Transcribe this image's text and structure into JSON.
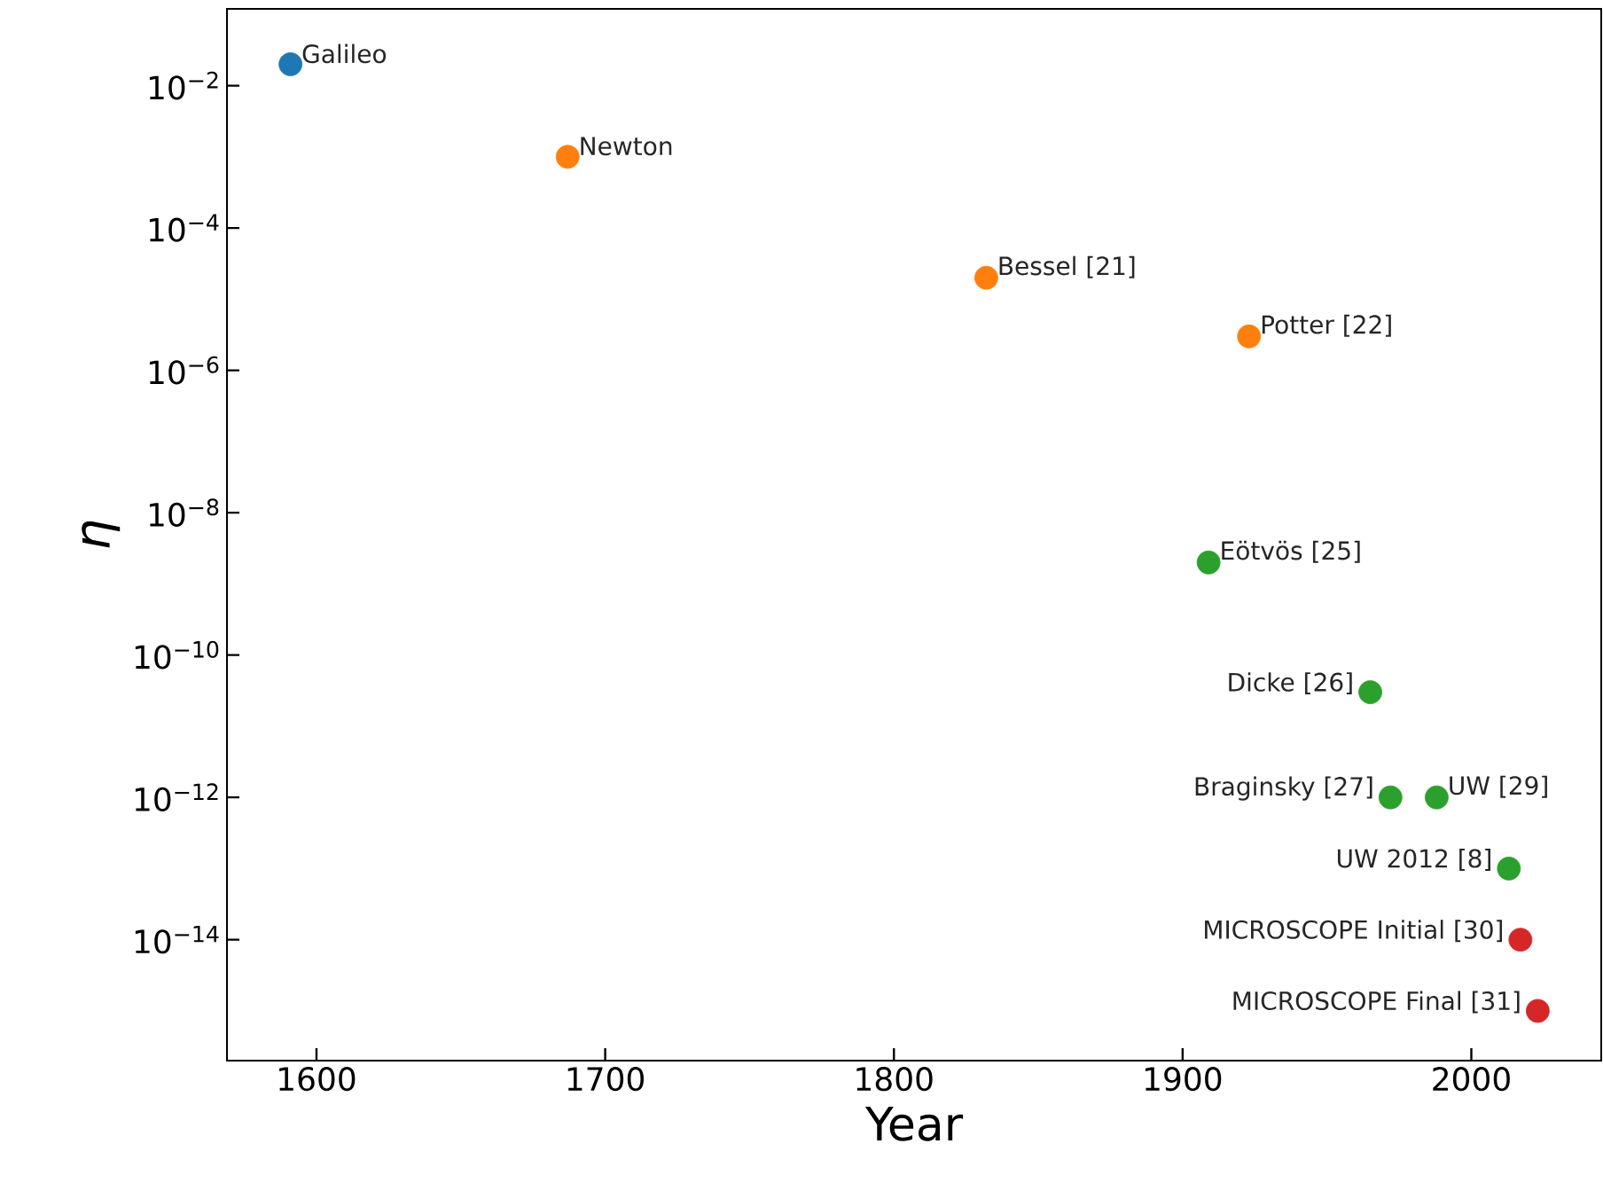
{
  "chart_data": {
    "type": "scatter",
    "xlabel": "Year",
    "ylabel": "η",
    "log": "y",
    "grid": false,
    "marker": "circle",
    "xlim": [
      1569,
      2045
    ],
    "xticks": [
      1600,
      1700,
      1800,
      1900,
      2000
    ],
    "ylim": [
      2e-16,
      0.12
    ],
    "yticks": [
      {
        "value": 0.01,
        "label": "10$^{−2}$"
      },
      {
        "value": 0.0001,
        "label": "10$^{−4}$"
      },
      {
        "value": 1e-06,
        "label": "10$^{−6}$"
      },
      {
        "value": 1e-08,
        "label": "10$^{−8}$"
      },
      {
        "value": 1e-10,
        "label": "10$^{−10}$"
      },
      {
        "value": 1e-12,
        "label": "10$^{−12}$"
      },
      {
        "value": 1e-14,
        "label": "10$^{−14}$"
      }
    ],
    "series": [
      {
        "color": "#1f77b4",
        "x": [
          1591
        ],
        "values": [
          0.02
        ]
      },
      {
        "color": "#ff7f0e",
        "x": [
          1687,
          1832,
          1923
        ],
        "values": [
          0.001,
          2e-05,
          3e-06
        ]
      },
      {
        "color": "#2ca02c",
        "x": [
          1909,
          1965,
          1972,
          1988,
          2013
        ],
        "values": [
          2e-09,
          3e-11,
          1e-12,
          1e-12,
          1e-13
        ]
      },
      {
        "color": "#d62728",
        "x": [
          2017,
          2023
        ],
        "values": [
          1e-14,
          1e-15
        ]
      }
    ],
    "annotations": [
      {
        "text": "Galileo",
        "x": 1591,
        "y": 0.02
      },
      {
        "text": "Newton",
        "x": 1687,
        "y": 0.001
      },
      {
        "text": "Bessel [21]",
        "x": 1832,
        "y": 2e-05
      },
      {
        "text": "Potter [22]",
        "x": 1923,
        "y": 3e-06
      },
      {
        "text": "Eötvös [25]",
        "x": 1909,
        "y": 2e-09
      },
      {
        "text": "Dicke [26]",
        "x": 1965,
        "y": 3e-11
      },
      {
        "text": "Braginsky [27]",
        "x": 1972,
        "y": 1e-12
      },
      {
        "text": "UW [29]",
        "x": 1988,
        "y": 1e-12
      },
      {
        "text": "UW 2012 [8]",
        "x": 2013,
        "y": 1e-13
      },
      {
        "text": "MICROSCOPE Initial [30]",
        "x": 2017,
        "y": 1e-14
      },
      {
        "text": "MICROSCOPE Final [31]",
        "x": 2023,
        "y": 1e-15
      }
    ]
  }
}
